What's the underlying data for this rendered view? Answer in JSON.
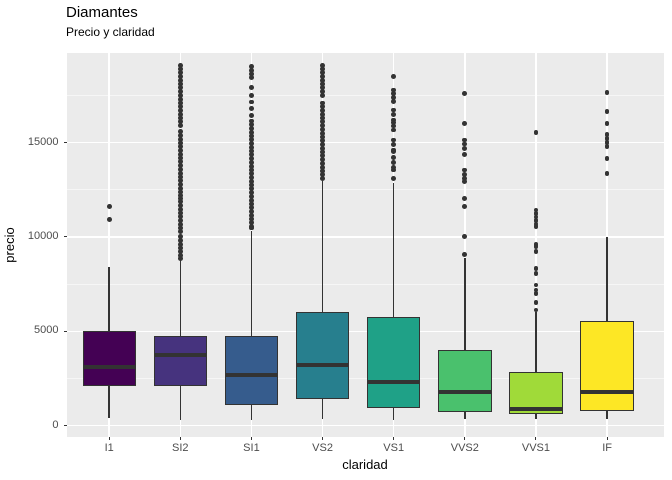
{
  "header": {
    "title": "Diamantes",
    "subtitle": "Precio y claridad"
  },
  "chart_data": {
    "type": "boxplot",
    "title": "Diamantes",
    "subtitle": "Precio y claridad",
    "xlabel": "claridad",
    "ylabel": "precio",
    "categories": [
      "I1",
      "SI2",
      "SI1",
      "VS2",
      "VS1",
      "VVS2",
      "VVS1",
      "IF"
    ],
    "y_ticks": [
      0,
      5000,
      10000,
      15000
    ],
    "y_tick_labels": [
      "0",
      "5000",
      "10000",
      "15000"
    ],
    "y_minor_gridlines": [
      2500,
      7500,
      12500,
      17500
    ],
    "ylim": [
      -599,
      19748
    ],
    "grid": true,
    "legend": "none",
    "panel_bg": "#EBEBEB",
    "grid_color": "#FFFFFF",
    "box_border_color": "#333333",
    "outlier_color": "#333333",
    "tick_label_color": "#4D4D4D",
    "series": [
      {
        "label": "I1",
        "fill": "#440154",
        "stats": {
          "low": 390,
          "q1": 2120,
          "median": 3130,
          "q3": 5040,
          "high": 8400
        },
        "outliers": [
          10940,
          11610
        ]
      },
      {
        "label": "SI2",
        "fill": "#46337E",
        "stats": {
          "low": 326,
          "q1": 2120,
          "median": 3730,
          "q3": 4770,
          "high": 8850
        },
        "outliers": [
          19100,
          18900,
          18700,
          18500,
          18300,
          18100,
          17900,
          17700,
          17500,
          17300,
          17100,
          16900,
          16700,
          16500,
          16300,
          16100,
          15900,
          15580,
          15380,
          15180,
          14980,
          14780,
          14580,
          14380,
          14180,
          13980,
          13780,
          13580,
          13380,
          13180,
          12980,
          12780,
          12580,
          12380,
          12180,
          12050,
          11870,
          11670,
          11470,
          11270,
          11070,
          10870,
          10670,
          10470,
          10270,
          10020,
          9820,
          9620,
          9420,
          9220,
          9020,
          8870
        ]
      },
      {
        "label": "SI1",
        "fill": "#365C8D",
        "stats": {
          "low": 326,
          "q1": 1080,
          "median": 2670,
          "q3": 4770,
          "high": 10300
        },
        "outliers": [
          19030,
          18830,
          18630,
          18430,
          17900,
          17500,
          17150,
          16800,
          16450,
          16150,
          15950,
          15750,
          15550,
          15350,
          15150,
          14950,
          14750,
          14550,
          14350,
          14150,
          13950,
          13750,
          13550,
          13350,
          13150,
          12950,
          12750,
          12550,
          12350,
          12150,
          11950,
          11750,
          11550,
          11350,
          11150,
          10950,
          10750,
          10550,
          10480
        ]
      },
      {
        "label": "VS2",
        "fill": "#277F8E",
        "stats": {
          "low": 334,
          "q1": 1400,
          "median": 3220,
          "q3": 6040,
          "high": 12950
        },
        "outliers": [
          19100,
          18900,
          18700,
          18500,
          18300,
          18100,
          17900,
          17700,
          17500,
          17100,
          16900,
          16700,
          16500,
          16300,
          16100,
          15900,
          15700,
          15500,
          15300,
          15100,
          14900,
          14700,
          14500,
          14300,
          14100,
          13900,
          13700,
          13500,
          13300,
          13100
        ]
      },
      {
        "label": "VS1",
        "fill": "#1FA187",
        "stats": {
          "low": 327,
          "q1": 920,
          "median": 2330,
          "q3": 5750,
          "high": 12880
        },
        "outliers": [
          18500,
          17790,
          17590,
          17390,
          17170,
          16730,
          16500,
          16200,
          16050,
          15880,
          15670,
          15140,
          14900,
          14610,
          14520,
          14190,
          13950,
          13700,
          13550,
          13110
        ]
      },
      {
        "label": "VVS2",
        "fill": "#4AC16D",
        "stats": {
          "low": 336,
          "q1": 710,
          "median": 1790,
          "q3": 4010,
          "high": 8870
        },
        "outliers": [
          17620,
          16030,
          15140,
          14930,
          14700,
          14350,
          13550,
          13320,
          13100,
          12930,
          12050,
          11610,
          10020,
          9050
        ]
      },
      {
        "label": "VVS1",
        "fill": "#A0DA39",
        "stats": {
          "low": 336,
          "q1": 630,
          "median": 890,
          "q3": 2870,
          "high": 6010
        },
        "outliers": [
          15550,
          11430,
          11250,
          11060,
          10870,
          10690,
          10550,
          9580,
          9490,
          9220,
          8340,
          8080,
          7460,
          7190,
          7020,
          6520,
          6130
        ]
      },
      {
        "label": "IF",
        "fill": "#FDE725",
        "stats": {
          "low": 369,
          "q1": 800,
          "median": 1800,
          "q3": 5560,
          "high": 9980
        },
        "outliers": [
          17670,
          16640,
          16030,
          15410,
          15200,
          14990,
          14790,
          14170,
          13380
        ]
      }
    ]
  }
}
